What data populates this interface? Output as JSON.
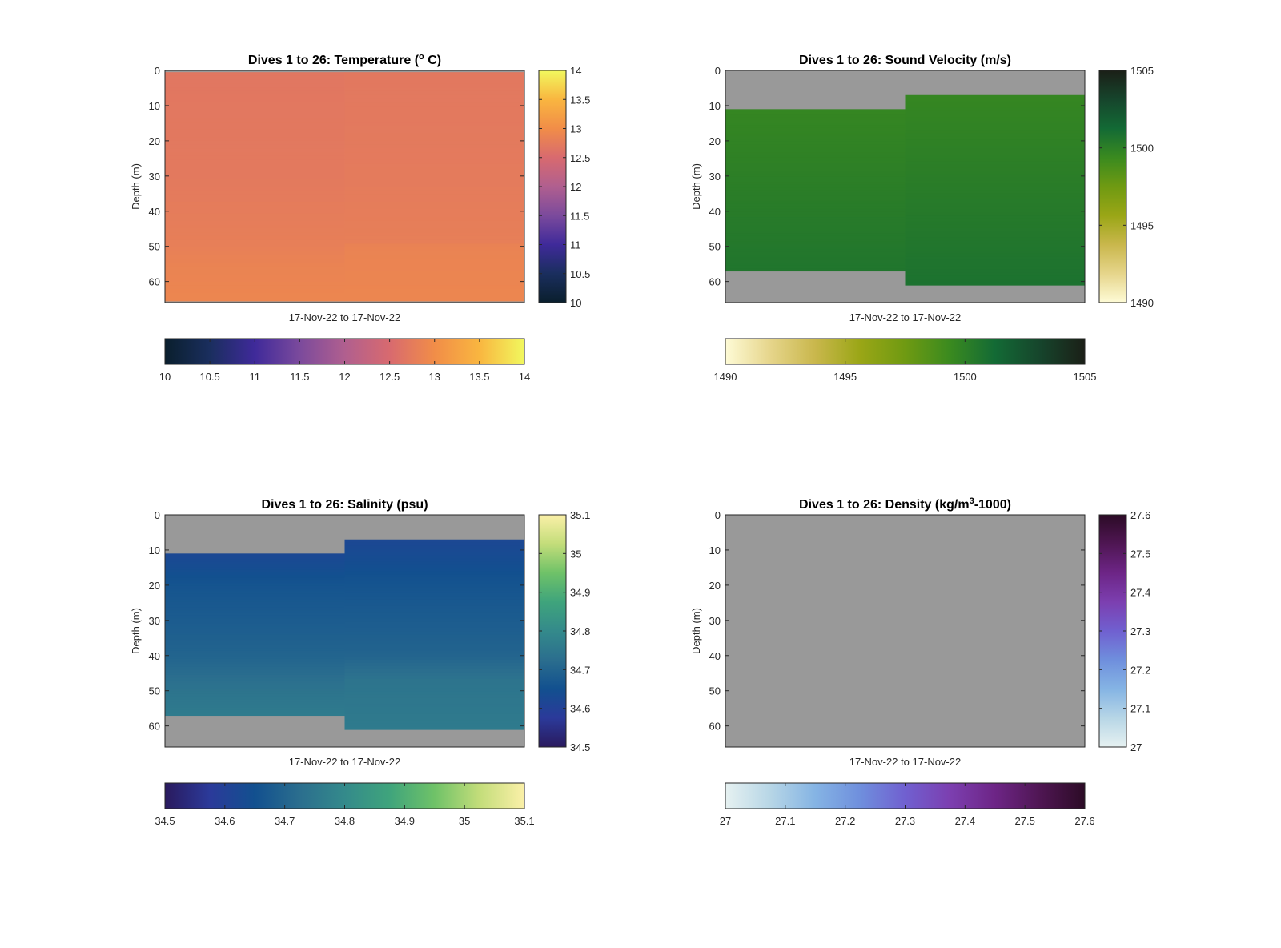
{
  "chart_data": [
    {
      "type": "heatmap",
      "title": "Dives 1 to 26: Temperature (",
      "title_sup": "o",
      "title_suffix": " C)",
      "xlabel": "17-Nov-22 to 17-Nov-22",
      "ylabel": "Depth (m)",
      "ylim": [
        0,
        66
      ],
      "y_ticks": [
        "0",
        "10",
        "20",
        "30",
        "40",
        "50",
        "60"
      ],
      "x_split_fraction": 0.5,
      "nan_color": "#999999",
      "segments": [
        {
          "valid_depth": [
            0.5,
            65.5
          ],
          "values_by_depth": [
            [
              0,
              12.68
            ],
            [
              30,
              12.72
            ],
            [
              50,
              12.8
            ],
            [
              55,
              12.86
            ],
            [
              65,
              12.9
            ]
          ]
        },
        {
          "valid_depth": [
            0.5,
            65.5
          ],
          "values_by_depth": [
            [
              0,
              12.7
            ],
            [
              30,
              12.74
            ],
            [
              49,
              12.8
            ],
            [
              50,
              12.86
            ],
            [
              65,
              12.9
            ]
          ]
        }
      ],
      "colorbar": {
        "min": 10,
        "max": 14,
        "ticks": [
          "10",
          "10.5",
          "11",
          "11.5",
          "12",
          "12.5",
          "13",
          "13.5",
          "14"
        ],
        "colormap": [
          "#0a1f2d",
          "#1a2e5e",
          "#3f2a9a",
          "#7b4a9c",
          "#b05f8f",
          "#d86a6f",
          "#f18d48",
          "#f9b640",
          "#f1f85e"
        ]
      }
    },
    {
      "type": "heatmap",
      "title": "Dives 1 to 26: Sound Velocity (m/s)",
      "xlabel": "17-Nov-22 to 17-Nov-22",
      "ylabel": "Depth (m)",
      "ylim": [
        0,
        66
      ],
      "y_ticks": [
        "0",
        "10",
        "20",
        "30",
        "40",
        "50",
        "60"
      ],
      "x_split_fraction": 0.5,
      "nan_color": "#999999",
      "segments": [
        {
          "valid_depth": [
            11,
            57
          ],
          "values_by_depth": [
            [
              11,
              1499.6
            ],
            [
              57,
              1500.6
            ]
          ]
        },
        {
          "valid_depth": [
            7,
            61
          ],
          "values_by_depth": [
            [
              7,
              1499.6
            ],
            [
              61,
              1500.8
            ]
          ]
        }
      ],
      "colorbar": {
        "min": 1490,
        "max": 1505,
        "ticks": [
          "1490",
          "1495",
          "1500",
          "1505"
        ],
        "colormap": [
          "#fefbd6",
          "#e6d58b",
          "#c9b74c",
          "#9aa616",
          "#6f9a12",
          "#3a8a1f",
          "#136a35",
          "#16452c",
          "#1b1f17"
        ]
      }
    },
    {
      "type": "heatmap",
      "title": "Dives 1 to 26: Salinity (psu)",
      "xlabel": "17-Nov-22 to 17-Nov-22",
      "ylabel": "Depth (m)",
      "ylim": [
        0,
        66
      ],
      "y_ticks": [
        "0",
        "10",
        "20",
        "30",
        "40",
        "50",
        "60"
      ],
      "x_split_fraction": 0.5,
      "nan_color": "#999999",
      "segments": [
        {
          "valid_depth": [
            11,
            57
          ],
          "values_by_depth": [
            [
              11,
              34.62
            ],
            [
              20,
              34.66
            ],
            [
              40,
              34.7
            ],
            [
              50,
              34.74
            ],
            [
              57,
              34.76
            ]
          ]
        },
        {
          "valid_depth": [
            7,
            61
          ],
          "values_by_depth": [
            [
              7,
              34.62
            ],
            [
              20,
              34.66
            ],
            [
              40,
              34.7
            ],
            [
              47,
              34.74
            ],
            [
              61,
              34.76
            ]
          ]
        }
      ],
      "colorbar": {
        "min": 34.5,
        "max": 35.1,
        "ticks": [
          "34.5",
          "34.6",
          "34.7",
          "34.8",
          "34.9",
          "35",
          "35.1"
        ],
        "colormap": [
          "#2a1a5e",
          "#2b3a9a",
          "#12508f",
          "#2b6e8e",
          "#348a8b",
          "#3fa47c",
          "#6fc268",
          "#c3dd7a",
          "#fbf0a8"
        ]
      }
    },
    {
      "type": "heatmap",
      "title": "Dives 1 to 26: Density (kg/m",
      "title_sup": "3",
      "title_suffix": "-1000)",
      "xlabel": "17-Nov-22 to 17-Nov-22",
      "ylabel": "Depth (m)",
      "ylim": [
        0,
        66
      ],
      "y_ticks": [
        "0",
        "10",
        "20",
        "30",
        "40",
        "50",
        "60"
      ],
      "x_split_fraction": 0.5,
      "nan_color": "#999999",
      "segments": [],
      "colorbar": {
        "min": 27,
        "max": 27.6,
        "ticks": [
          "27",
          "27.1",
          "27.2",
          "27.3",
          "27.4",
          "27.5",
          "27.6"
        ],
        "colormap": [
          "#e6f1f1",
          "#b7d6e6",
          "#85b4e4",
          "#6f8fdd",
          "#7060d0",
          "#7c3fb0",
          "#6d2586",
          "#4f1653",
          "#2c0b26"
        ]
      }
    }
  ]
}
